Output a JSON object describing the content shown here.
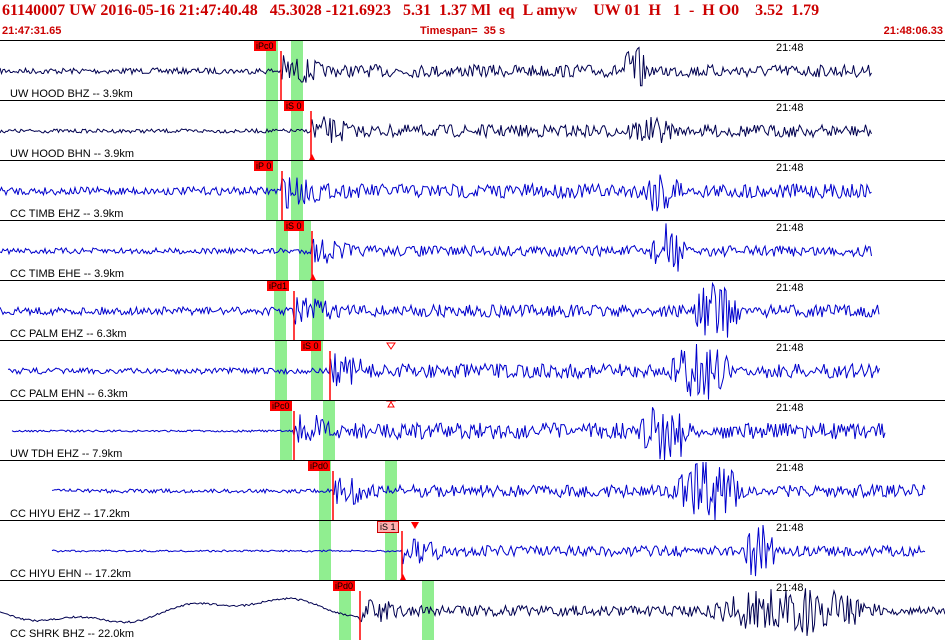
{
  "header": {
    "title": "61140007 UW 2016-05-16 21:47:40.48   45.3028 -121.6923   5.31  1.37 Ml  eq  L amyw    UW 01  H   1  -  H O0    3.52  1.79",
    "start_time": "21:47:31.65",
    "timespan": "Timespan=  35 s",
    "end_time": "21:48:06.33"
  },
  "colors": {
    "title_red": "#cc0000",
    "trace_blue": "#0000cc",
    "trace_navy": "#000050",
    "pick_red": "#ff0000",
    "window_green": "#90ee90"
  },
  "channels": [
    {
      "label": "UW HOOD BHZ -- 3.9km",
      "time_mark": "21:48",
      "pick": "iPc0",
      "style": "navy",
      "marker": "none"
    },
    {
      "label": "UW HOOD BHN -- 3.9km",
      "time_mark": "21:48",
      "pick": "iS 0",
      "style": "navy",
      "marker": "up"
    },
    {
      "label": "CC TIMB EHZ -- 3.9km",
      "time_mark": "21:48",
      "pick": "iP 0",
      "style": "blue",
      "marker": "none"
    },
    {
      "label": "CC TIMB EHE -- 3.9km",
      "time_mark": "21:48",
      "pick": "iS 0",
      "style": "blue",
      "marker": "up"
    },
    {
      "label": "CC PALM EHZ -- 6.3km",
      "time_mark": "21:48",
      "pick": "iPd1",
      "style": "blue",
      "marker": "none"
    },
    {
      "label": "CC PALM EHN -- 6.3km",
      "time_mark": "21:48",
      "pick": "iS 0",
      "style": "blue",
      "marker": "none"
    },
    {
      "label": "UW TDH EHZ -- 7.9km",
      "time_mark": "21:48",
      "pick": "iPc0",
      "style": "blue",
      "marker": "none"
    },
    {
      "label": "CC HIYU EHZ -- 17.2km",
      "time_mark": "21:48",
      "pick": "iPd0",
      "style": "blue",
      "marker": "none"
    },
    {
      "label": "CC HIYU EHN -- 17.2km",
      "time_mark": "21:48",
      "pick": "iS 1",
      "style": "blue",
      "marker": "up"
    },
    {
      "label": "CC SHRK BHZ -- 22.0km",
      "time_mark": "21:48",
      "pick": "iPd0",
      "style": "navy",
      "marker": "none"
    }
  ]
}
